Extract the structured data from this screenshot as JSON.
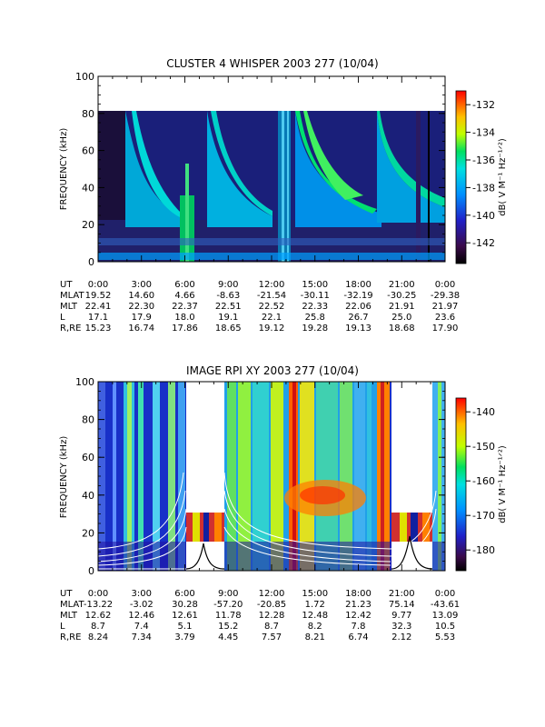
{
  "chart_data": [
    {
      "type": "heatmap",
      "title": "CLUSTER 4 WHISPER 2003 277 (10/04)",
      "ylabel": "FREQUENCY (kHz)",
      "ylim": [
        0,
        100
      ],
      "yticks": [
        "0",
        "20",
        "40",
        "60",
        "80",
        "100"
      ],
      "xlim_hours": [
        0,
        24
      ],
      "colorbar": {
        "label": "dB( V M⁻¹ Hz⁻¹ᐟ²)",
        "range": [
          -143.5,
          -131
        ],
        "ticks": [
          "-132",
          "-134",
          "-136",
          "-138",
          "-140",
          "-142"
        ]
      },
      "data_extent_khz": 80,
      "ephemeris": {
        "labels": [
          "UT",
          "MLAT",
          "MLT",
          "L",
          "R,RE"
        ],
        "rows": [
          [
            "0:00",
            "3:00",
            "6:00",
            "9:00",
            "12:00",
            "15:00",
            "18:00",
            "21:00",
            "0:00"
          ],
          [
            "19.52",
            "14.60",
            "4.66",
            "-8.63",
            "-21.54",
            "-30.11",
            "-32.19",
            "-30.25",
            "-29.38"
          ],
          [
            "22.41",
            "22.30",
            "22.37",
            "22.51",
            "22.52",
            "22.33",
            "22.06",
            "21.91",
            "21.97"
          ],
          [
            "17.1",
            "17.9",
            "18.0",
            "19.1",
            "22.1",
            "25.8",
            "26.7",
            "25.0",
            "23.6"
          ],
          [
            "15.23",
            "16.74",
            "17.86",
            "18.65",
            "19.12",
            "19.28",
            "19.13",
            "18.68",
            "17.90"
          ]
        ]
      }
    },
    {
      "type": "heatmap",
      "title": "IMAGE RPI XY 2003 277 (10/04)",
      "ylabel": "FREQUENCY (kHz)",
      "ylim": [
        0,
        100
      ],
      "yticks": [
        "0",
        "20",
        "40",
        "60",
        "80",
        "100"
      ],
      "xlim_hours": [
        0,
        24
      ],
      "colorbar": {
        "label": "dB( V M⁻¹ Hz⁻¹ᐟ²)",
        "range": [
          -186,
          -136
        ],
        "ticks": [
          "-140",
          "-150",
          "-160",
          "-170",
          "-180"
        ]
      },
      "data_gaps_hours": [
        [
          6.0,
          8.6
        ],
        [
          21.3,
          23.6
        ]
      ],
      "ephemeris": {
        "labels": [
          "UT",
          "MLAT",
          "MLT",
          "L",
          "R,RE"
        ],
        "rows": [
          [
            "0:00",
            "3:00",
            "6:00",
            "9:00",
            "12:00",
            "15:00",
            "18:00",
            "21:00",
            "0:00"
          ],
          [
            "-13.22",
            "-3.02",
            "30.28",
            "-57.20",
            "-20.85",
            "1.72",
            "21.23",
            "75.14",
            "-43.61"
          ],
          [
            "12.62",
            "12.46",
            "12.61",
            "11.78",
            "12.28",
            "12.48",
            "12.42",
            "9.77",
            "13.09"
          ],
          [
            "8.7",
            "7.4",
            "5.1",
            "15.2",
            "8.7",
            "8.2",
            "7.8",
            "32.3",
            "10.5"
          ],
          [
            "8.24",
            "7.34",
            "3.79",
            "4.45",
            "7.57",
            "8.21",
            "6.74",
            "2.12",
            "5.53"
          ]
        ]
      }
    }
  ]
}
